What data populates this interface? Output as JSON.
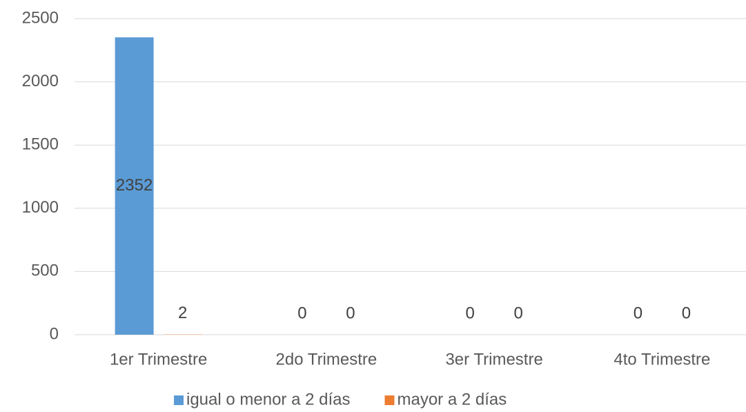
{
  "chart_data": {
    "type": "bar",
    "categories": [
      "1er Trimestre",
      "2do Trimestre",
      "3er Trimestre",
      "4to Trimestre"
    ],
    "series": [
      {
        "name": "igual o menor a 2 días",
        "color": "#5b9bd5",
        "values": [
          2352,
          0,
          0,
          0
        ]
      },
      {
        "name": "mayor a 2 días",
        "color": "#ed7d31",
        "values": [
          2,
          0,
          0,
          0
        ]
      }
    ],
    "ylim": [
      0,
      2500
    ],
    "yticks": [
      0,
      500,
      1000,
      1500,
      2000,
      2500
    ],
    "grid": true,
    "data_labels": true,
    "legend": "bottom"
  }
}
